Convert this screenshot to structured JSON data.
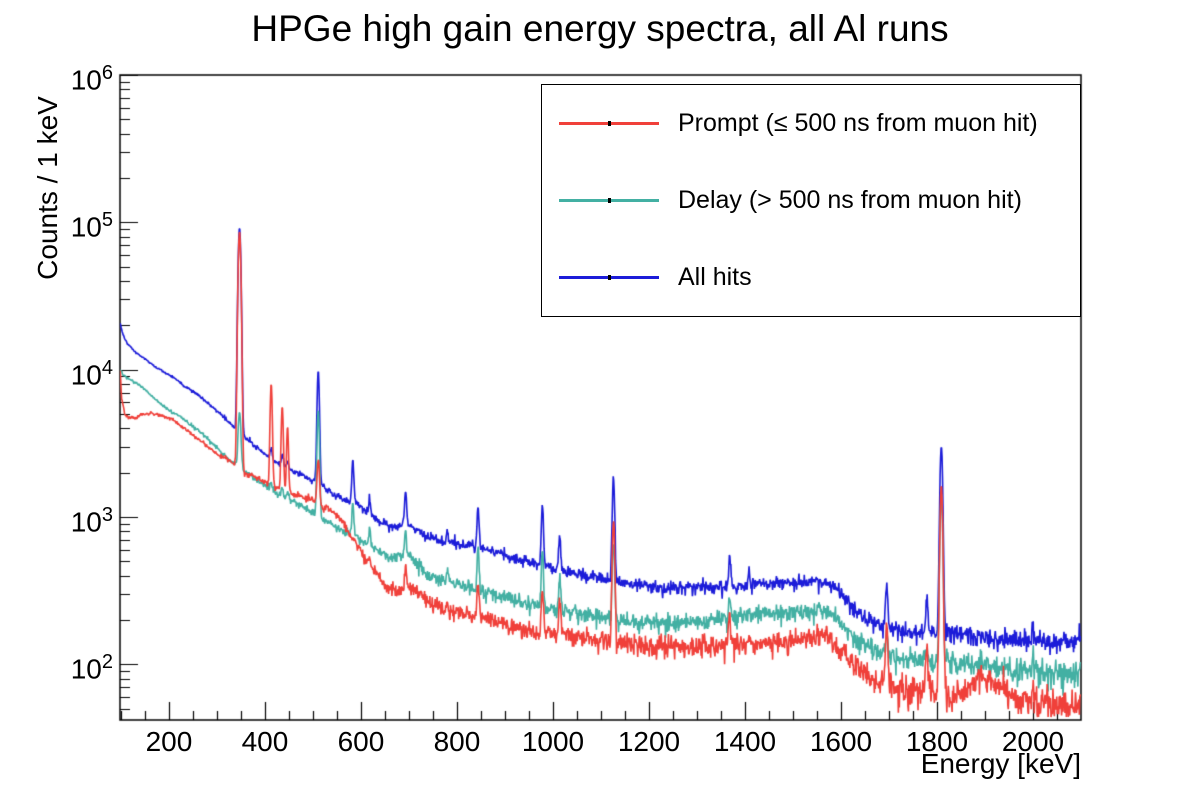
{
  "title": "HPGe high gain energy spectra, all Al runs",
  "axes": {
    "x": {
      "title": "Energy [keV]",
      "range": [
        98,
        2100
      ],
      "tick_labels": [
        "200",
        "400",
        "600",
        "800",
        "1000",
        "1200",
        "1400",
        "1600",
        "1800",
        "2000"
      ],
      "minor_step_kev": 50
    },
    "y": {
      "title": "Counts / 1 keV",
      "scale": "log",
      "range": [
        42,
        1000000
      ],
      "tick_base": "10",
      "tick_exponents": [
        2,
        3,
        4,
        5,
        6
      ]
    }
  },
  "legend": {
    "entries": [
      {
        "label": "Prompt (≤ 500 ns from muon hit)",
        "color": "#f0403a"
      },
      {
        "label": "Delay (> 500 ns from muon hit)",
        "color": "#43b0a3"
      },
      {
        "label": "All hits",
        "color": "#1c1cd9"
      }
    ]
  },
  "chart_data": {
    "type": "line",
    "title": "HPGe high gain energy spectra, all Al runs",
    "xlabel": "Energy [keV]",
    "ylabel": "Counts / 1 keV",
    "x_range_kev": [
      98,
      2100
    ],
    "y_range_counts": [
      42,
      1000000
    ],
    "y_scale": "log",
    "bin_width_kev": 1,
    "legend_position": "top-right",
    "grid": false,
    "representation": "continuum_anchors_plus_peaks",
    "draw_order": [
      "all",
      "delay",
      "prompt"
    ],
    "series": [
      {
        "key": "prompt",
        "name": "Prompt (≤ 500 ns from muon hit)",
        "color": "#f0403a",
        "continuum": [
          [
            98,
            10700
          ],
          [
            101,
            6500
          ],
          [
            108,
            5000
          ],
          [
            115,
            4750
          ],
          [
            130,
            4700
          ],
          [
            145,
            4950
          ],
          [
            162,
            5100
          ],
          [
            175,
            5000
          ],
          [
            190,
            4800
          ],
          [
            205,
            4650
          ],
          [
            225,
            4150
          ],
          [
            250,
            3600
          ],
          [
            275,
            3100
          ],
          [
            300,
            2700
          ],
          [
            330,
            2380
          ],
          [
            358,
            1950
          ],
          [
            380,
            1880
          ],
          [
            420,
            1600
          ],
          [
            460,
            1420
          ],
          [
            500,
            1300
          ],
          [
            520,
            1180
          ],
          [
            540,
            1100
          ],
          [
            560,
            950
          ],
          [
            585,
            700
          ],
          [
            610,
            520
          ],
          [
            632,
            420
          ],
          [
            655,
            330
          ],
          [
            680,
            320
          ],
          [
            700,
            345
          ],
          [
            722,
            300
          ],
          [
            745,
            255
          ],
          [
            770,
            235
          ],
          [
            820,
            215
          ],
          [
            870,
            200
          ],
          [
            920,
            180
          ],
          [
            960,
            168
          ],
          [
            1010,
            158
          ],
          [
            1060,
            154
          ],
          [
            1110,
            146
          ],
          [
            1160,
            139
          ],
          [
            1210,
            133
          ],
          [
            1260,
            131
          ],
          [
            1320,
            133
          ],
          [
            1380,
            136
          ],
          [
            1440,
            141
          ],
          [
            1500,
            147
          ],
          [
            1540,
            153
          ],
          [
            1570,
            158
          ],
          [
            1585,
            140
          ],
          [
            1598,
            125
          ],
          [
            1625,
            100
          ],
          [
            1655,
            83
          ],
          [
            1685,
            74
          ],
          [
            1720,
            68
          ],
          [
            1760,
            67
          ],
          [
            1800,
            66
          ],
          [
            1835,
            62
          ],
          [
            1862,
            64
          ],
          [
            1888,
            88
          ],
          [
            1905,
            80
          ],
          [
            1930,
            70
          ],
          [
            1960,
            60
          ],
          [
            2000,
            57
          ],
          [
            2040,
            55
          ],
          [
            2075,
            53
          ],
          [
            2096,
            52
          ],
          [
            2100,
            60
          ]
        ]
      },
      {
        "key": "delay",
        "name": "Delay (> 500 ns from muon hit)",
        "color": "#43b0a3",
        "continuum": [
          [
            98,
            10000
          ],
          [
            105,
            9200
          ],
          [
            115,
            8700
          ],
          [
            125,
            8400
          ],
          [
            135,
            8000
          ],
          [
            150,
            7300
          ],
          [
            165,
            6600
          ],
          [
            180,
            6000
          ],
          [
            200,
            5350
          ],
          [
            220,
            4900
          ],
          [
            240,
            4350
          ],
          [
            260,
            3900
          ],
          [
            280,
            3400
          ],
          [
            300,
            2950
          ],
          [
            320,
            2550
          ],
          [
            340,
            2250
          ],
          [
            360,
            2050
          ],
          [
            380,
            1800
          ],
          [
            400,
            1650
          ],
          [
            420,
            1480
          ],
          [
            445,
            1330
          ],
          [
            470,
            1220
          ],
          [
            495,
            1110
          ],
          [
            515,
            1000
          ],
          [
            540,
            890
          ],
          [
            570,
            780
          ],
          [
            600,
            700
          ],
          [
            630,
            610
          ],
          [
            655,
            530
          ],
          [
            675,
            545
          ],
          [
            695,
            560
          ],
          [
            715,
            500
          ],
          [
            740,
            400
          ],
          [
            775,
            365
          ],
          [
            820,
            335
          ],
          [
            870,
            305
          ],
          [
            920,
            275
          ],
          [
            960,
            258
          ],
          [
            1010,
            237
          ],
          [
            1060,
            222
          ],
          [
            1110,
            208
          ],
          [
            1160,
            196
          ],
          [
            1215,
            190
          ],
          [
            1270,
            192
          ],
          [
            1330,
            200
          ],
          [
            1390,
            211
          ],
          [
            1450,
            219
          ],
          [
            1510,
            226
          ],
          [
            1555,
            233
          ],
          [
            1573,
            235
          ],
          [
            1598,
            190
          ],
          [
            1615,
            165
          ],
          [
            1645,
            139
          ],
          [
            1680,
            118
          ],
          [
            1720,
            110
          ],
          [
            1765,
            107
          ],
          [
            1810,
            104
          ],
          [
            1850,
            102
          ],
          [
            1900,
            98
          ],
          [
            1950,
            94
          ],
          [
            2000,
            91
          ],
          [
            2050,
            88
          ],
          [
            2080,
            86
          ],
          [
            2096,
            88
          ],
          [
            2100,
            100
          ]
        ]
      },
      {
        "key": "all",
        "name": "All hits",
        "color": "#1c1cd9",
        "continuum": [
          [
            98,
            21000
          ],
          [
            104,
            17500
          ],
          [
            112,
            15200
          ],
          [
            122,
            14000
          ],
          [
            132,
            13000
          ],
          [
            145,
            12200
          ],
          [
            158,
            11300
          ],
          [
            172,
            10400
          ],
          [
            186,
            9900
          ],
          [
            200,
            9200
          ],
          [
            215,
            8600
          ],
          [
            230,
            7800
          ],
          [
            245,
            7300
          ],
          [
            262,
            6700
          ],
          [
            280,
            6000
          ],
          [
            298,
            5300
          ],
          [
            315,
            4800
          ],
          [
            332,
            4200
          ],
          [
            352,
            3600
          ],
          [
            372,
            3200
          ],
          [
            395,
            2750
          ],
          [
            420,
            2400
          ],
          [
            445,
            2150
          ],
          [
            470,
            1950
          ],
          [
            495,
            1800
          ],
          [
            515,
            1650
          ],
          [
            540,
            1450
          ],
          [
            565,
            1320
          ],
          [
            590,
            1230
          ],
          [
            615,
            1070
          ],
          [
            640,
            940
          ],
          [
            662,
            850
          ],
          [
            680,
            880
          ],
          [
            700,
            905
          ],
          [
            718,
            800
          ],
          [
            740,
            735
          ],
          [
            775,
            680
          ],
          [
            820,
            640
          ],
          [
            865,
            600
          ],
          [
            910,
            540
          ],
          [
            955,
            490
          ],
          [
            1005,
            440
          ],
          [
            1055,
            408
          ],
          [
            1105,
            382
          ],
          [
            1155,
            358
          ],
          [
            1210,
            336
          ],
          [
            1265,
            330
          ],
          [
            1330,
            336
          ],
          [
            1395,
            342
          ],
          [
            1455,
            350
          ],
          [
            1515,
            358
          ],
          [
            1558,
            366
          ],
          [
            1573,
            365
          ],
          [
            1600,
            300
          ],
          [
            1615,
            262
          ],
          [
            1645,
            212
          ],
          [
            1680,
            185
          ],
          [
            1720,
            168
          ],
          [
            1765,
            165
          ],
          [
            1810,
            168
          ],
          [
            1855,
            162
          ],
          [
            1905,
            153
          ],
          [
            1955,
            148
          ],
          [
            2005,
            145
          ],
          [
            2055,
            142
          ],
          [
            2080,
            142
          ],
          [
            2096,
            148
          ],
          [
            2100,
            165
          ]
        ]
      }
    ],
    "peaks": [
      {
        "e": 347,
        "sigma": 2.6,
        "all": 92000,
        "delay": 5200,
        "prompt": 87000
      },
      {
        "e": 413,
        "sigma": 2.0,
        "all": 2900,
        "delay": 1700,
        "prompt": 8000
      },
      {
        "e": 436,
        "sigma": 2.0,
        "all": 2650,
        "delay": 1600,
        "prompt": 5600
      },
      {
        "e": 447,
        "sigma": 1.8,
        "all": 2450,
        "delay": 1500,
        "prompt": 4100
      },
      {
        "e": 511,
        "sigma": 2.2,
        "all": 9700,
        "delay": 5300,
        "prompt": 2450
      },
      {
        "e": 583,
        "sigma": 2.0,
        "all": 2400,
        "delay": 1250,
        "prompt": 700
      },
      {
        "e": 618,
        "sigma": 1.8,
        "all": 1350,
        "delay": 820,
        "prompt": 520
      },
      {
        "e": 693,
        "sigma": 1.8,
        "all": 1500,
        "delay": 830,
        "prompt": 460
      },
      {
        "e": 780,
        "sigma": 1.8,
        "all": 820,
        "delay": 430,
        "prompt": 265
      },
      {
        "e": 844,
        "sigma": 2.0,
        "all": 1150,
        "delay": 600,
        "prompt": 360
      },
      {
        "e": 978,
        "sigma": 2.0,
        "all": 1200,
        "delay": 590,
        "prompt": 330
      },
      {
        "e": 1014,
        "sigma": 2.0,
        "all": 740,
        "delay": 400,
        "prompt": 285
      },
      {
        "e": 1126,
        "sigma": 2.2,
        "all": 1850,
        "delay": 660,
        "prompt": 980
      },
      {
        "e": 1368,
        "sigma": 2.0,
        "all": 550,
        "delay": 275,
        "prompt": 225
      },
      {
        "e": 1409,
        "sigma": 1.8,
        "all": 430,
        "delay": 240,
        "prompt": 160
      },
      {
        "e": 1695,
        "sigma": 2.0,
        "all": 360,
        "delay": 160,
        "prompt": 190
      },
      {
        "e": 1779,
        "sigma": 1.8,
        "all": 300,
        "delay": 130,
        "prompt": 140
      },
      {
        "e": 1809,
        "sigma": 2.5,
        "all": 3000,
        "delay": 1400,
        "prompt": 1600
      },
      {
        "e": 2000,
        "sigma": 1.8,
        "all": 185,
        "delay": 112,
        "prompt": 74
      }
    ]
  },
  "colors": {
    "background": "#ffffff",
    "frame": "#000000",
    "text": "#000000"
  }
}
